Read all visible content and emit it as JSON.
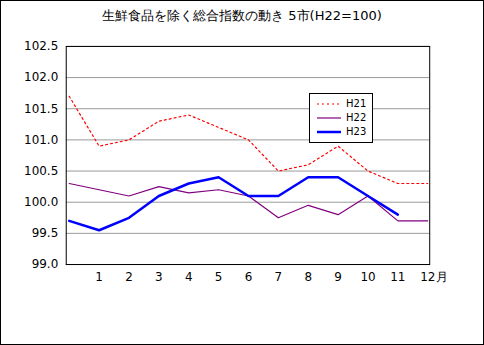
{
  "chart_data": {
    "type": "line",
    "title": "生鮮食品を除く総合指数の動き 5市(H22=100)",
    "x_label": "月",
    "categories": [
      null,
      "1",
      "2",
      "3",
      "4",
      "5",
      "6",
      "7",
      "8",
      "9",
      "10",
      "11",
      "12"
    ],
    "series": [
      {
        "name": "H21",
        "color": "#ff0000",
        "line_style": "dotted",
        "values": [
          101.7,
          100.9,
          101.0,
          101.3,
          101.4,
          101.2,
          101.0,
          100.5,
          100.6,
          100.9,
          100.5,
          100.3,
          100.3
        ]
      },
      {
        "name": "H22",
        "color": "#800080",
        "line_style": "solid",
        "values": [
          100.3,
          100.2,
          100.1,
          100.25,
          100.15,
          100.2,
          100.1,
          99.75,
          99.95,
          99.8,
          100.1,
          99.7,
          99.7
        ]
      },
      {
        "name": "H23",
        "color": "#0000ff",
        "line_style": "solid",
        "values": [
          99.7,
          99.55,
          99.75,
          100.1,
          100.3,
          100.4,
          100.1,
          100.1,
          100.4,
          100.4,
          100.1,
          99.8,
          null
        ]
      }
    ],
    "ylim": [
      99,
      102.5
    ],
    "yticks": [
      {
        "value": 99,
        "label": "99.0"
      },
      99.5,
      {
        "value": 100,
        "label": "100.0"
      },
      100.5,
      {
        "value": 101,
        "label": "101.0"
      },
      101.5,
      {
        "value": 102,
        "label": "102.0"
      },
      102.5
    ],
    "grid": true,
    "legend": "top-right"
  }
}
